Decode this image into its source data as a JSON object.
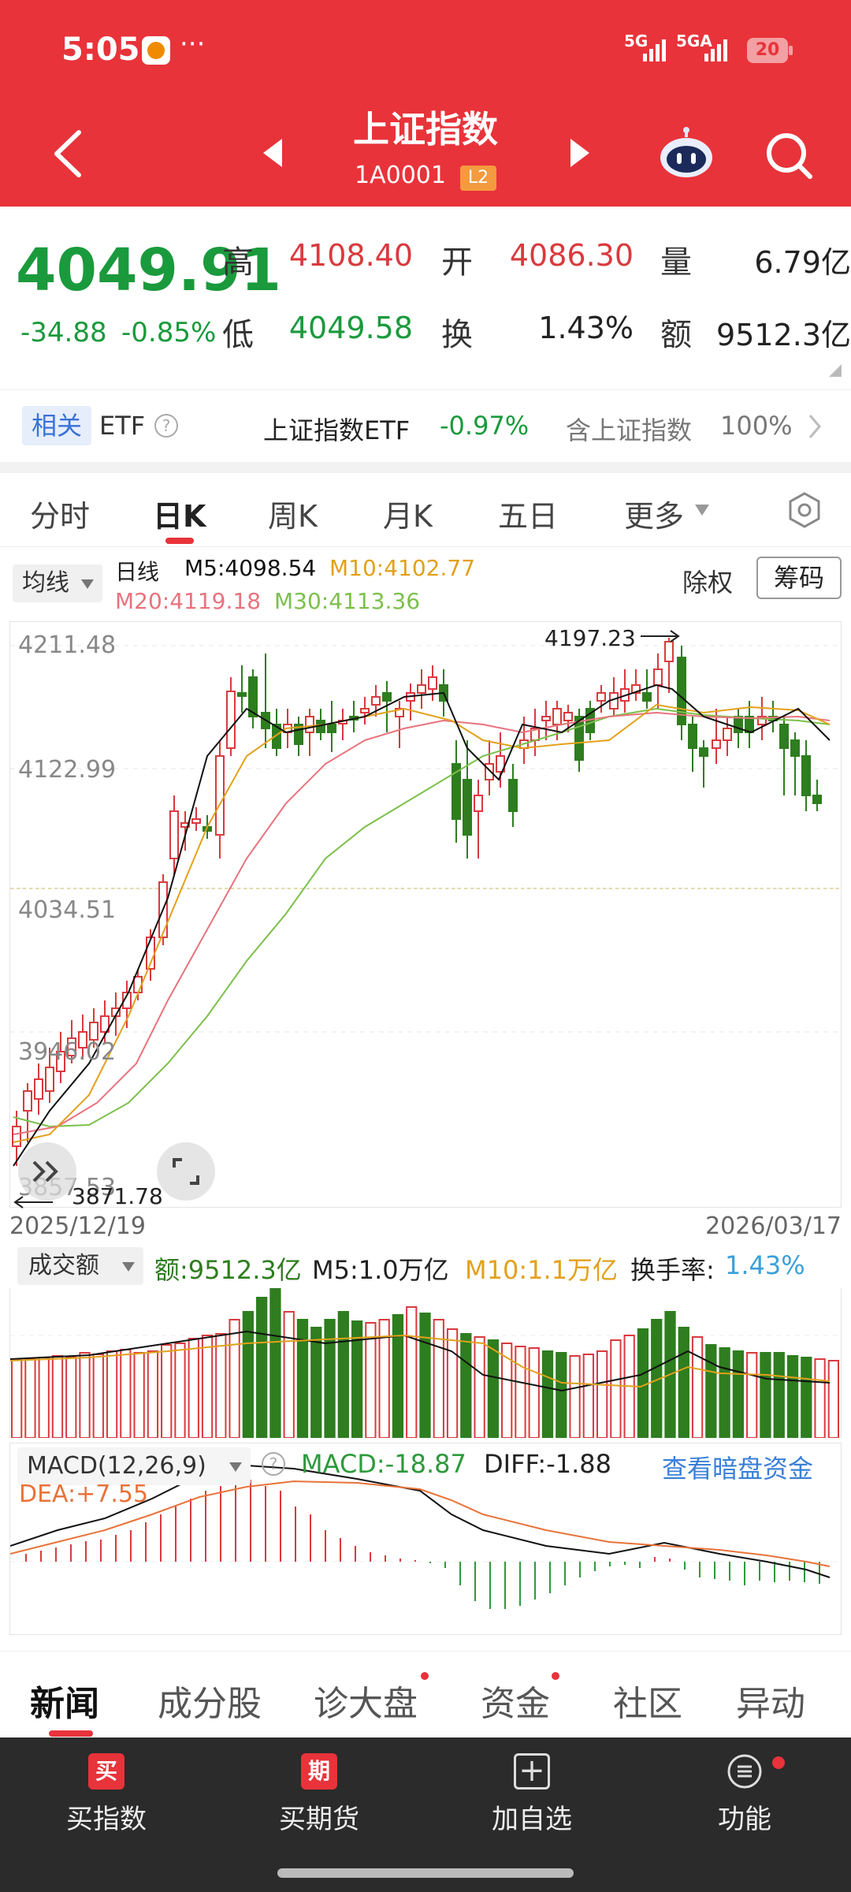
{
  "status": {
    "time": "5:05",
    "network1": "5G",
    "network2": "5GA",
    "battery": "20"
  },
  "header": {
    "title": "上证指数",
    "code": "1A0001",
    "badge": "L2"
  },
  "quote": {
    "price": "4049.91",
    "change": "-34.88",
    "change_pct": "-0.85%",
    "high_label": "高",
    "high": "4108.40",
    "open_label": "开",
    "open": "4086.30",
    "volume_label": "量",
    "volume": "6.79亿",
    "low_label": "低",
    "low": "4049.58",
    "turnover_label": "换",
    "turnover": "1.43%",
    "amount_label": "额",
    "amount": "9512.3亿"
  },
  "etf": {
    "tag": "相关",
    "label": "ETF",
    "name": "上证指数ETF",
    "pct": "-0.97%",
    "hold_label": "含上证指数",
    "hold_pct": "100%"
  },
  "ktabs": [
    "分时",
    "日K",
    "周K",
    "月K",
    "五日",
    "更多"
  ],
  "controls": {
    "ma_select": "均线",
    "period": "日线",
    "m5": "M5:4098.54",
    "m10": "M10:4102.77",
    "m20": "M20:4119.18",
    "m30": "M30:4113.36",
    "fq": "除权",
    "chip": "筹码"
  },
  "kchart": {
    "y_labels": [
      "4211.48",
      "4122.99",
      "4034.51",
      "3946.02",
      "3857.53"
    ],
    "high_mark": "4197.23",
    "low_mark": "3871.78",
    "start_date": "2025/12/19",
    "end_date": "2026/03/17"
  },
  "volume": {
    "select": "成交额",
    "amount": "额:9512.3亿",
    "m5": "M5:1.0万亿",
    "m10": "M10:1.1万亿",
    "turnover_label": "换手率:",
    "turnover": "1.43%"
  },
  "macd": {
    "select": "MACD(12,26,9)",
    "macd": "MACD:-18.87",
    "diff": "DIFF:-1.88",
    "dea": "DEA:+7.55",
    "link": "查看暗盘资金"
  },
  "bottom_tabs": [
    "新闻",
    "成分股",
    "诊大盘",
    "资金",
    "社区",
    "异动"
  ],
  "nav": {
    "buy_index_icon": "买",
    "buy_index": "买指数",
    "buy_futures_icon": "期",
    "buy_futures": "买期货",
    "add_watch": "加自选",
    "functions": "功能"
  },
  "colors": {
    "header": "#e8333a",
    "up": "#d93a3e",
    "down": "#2e7d1f",
    "ma5": "#111111",
    "ma10": "#e2a11b",
    "ma20": "#e8737d",
    "ma30": "#7cc04b"
  }
}
